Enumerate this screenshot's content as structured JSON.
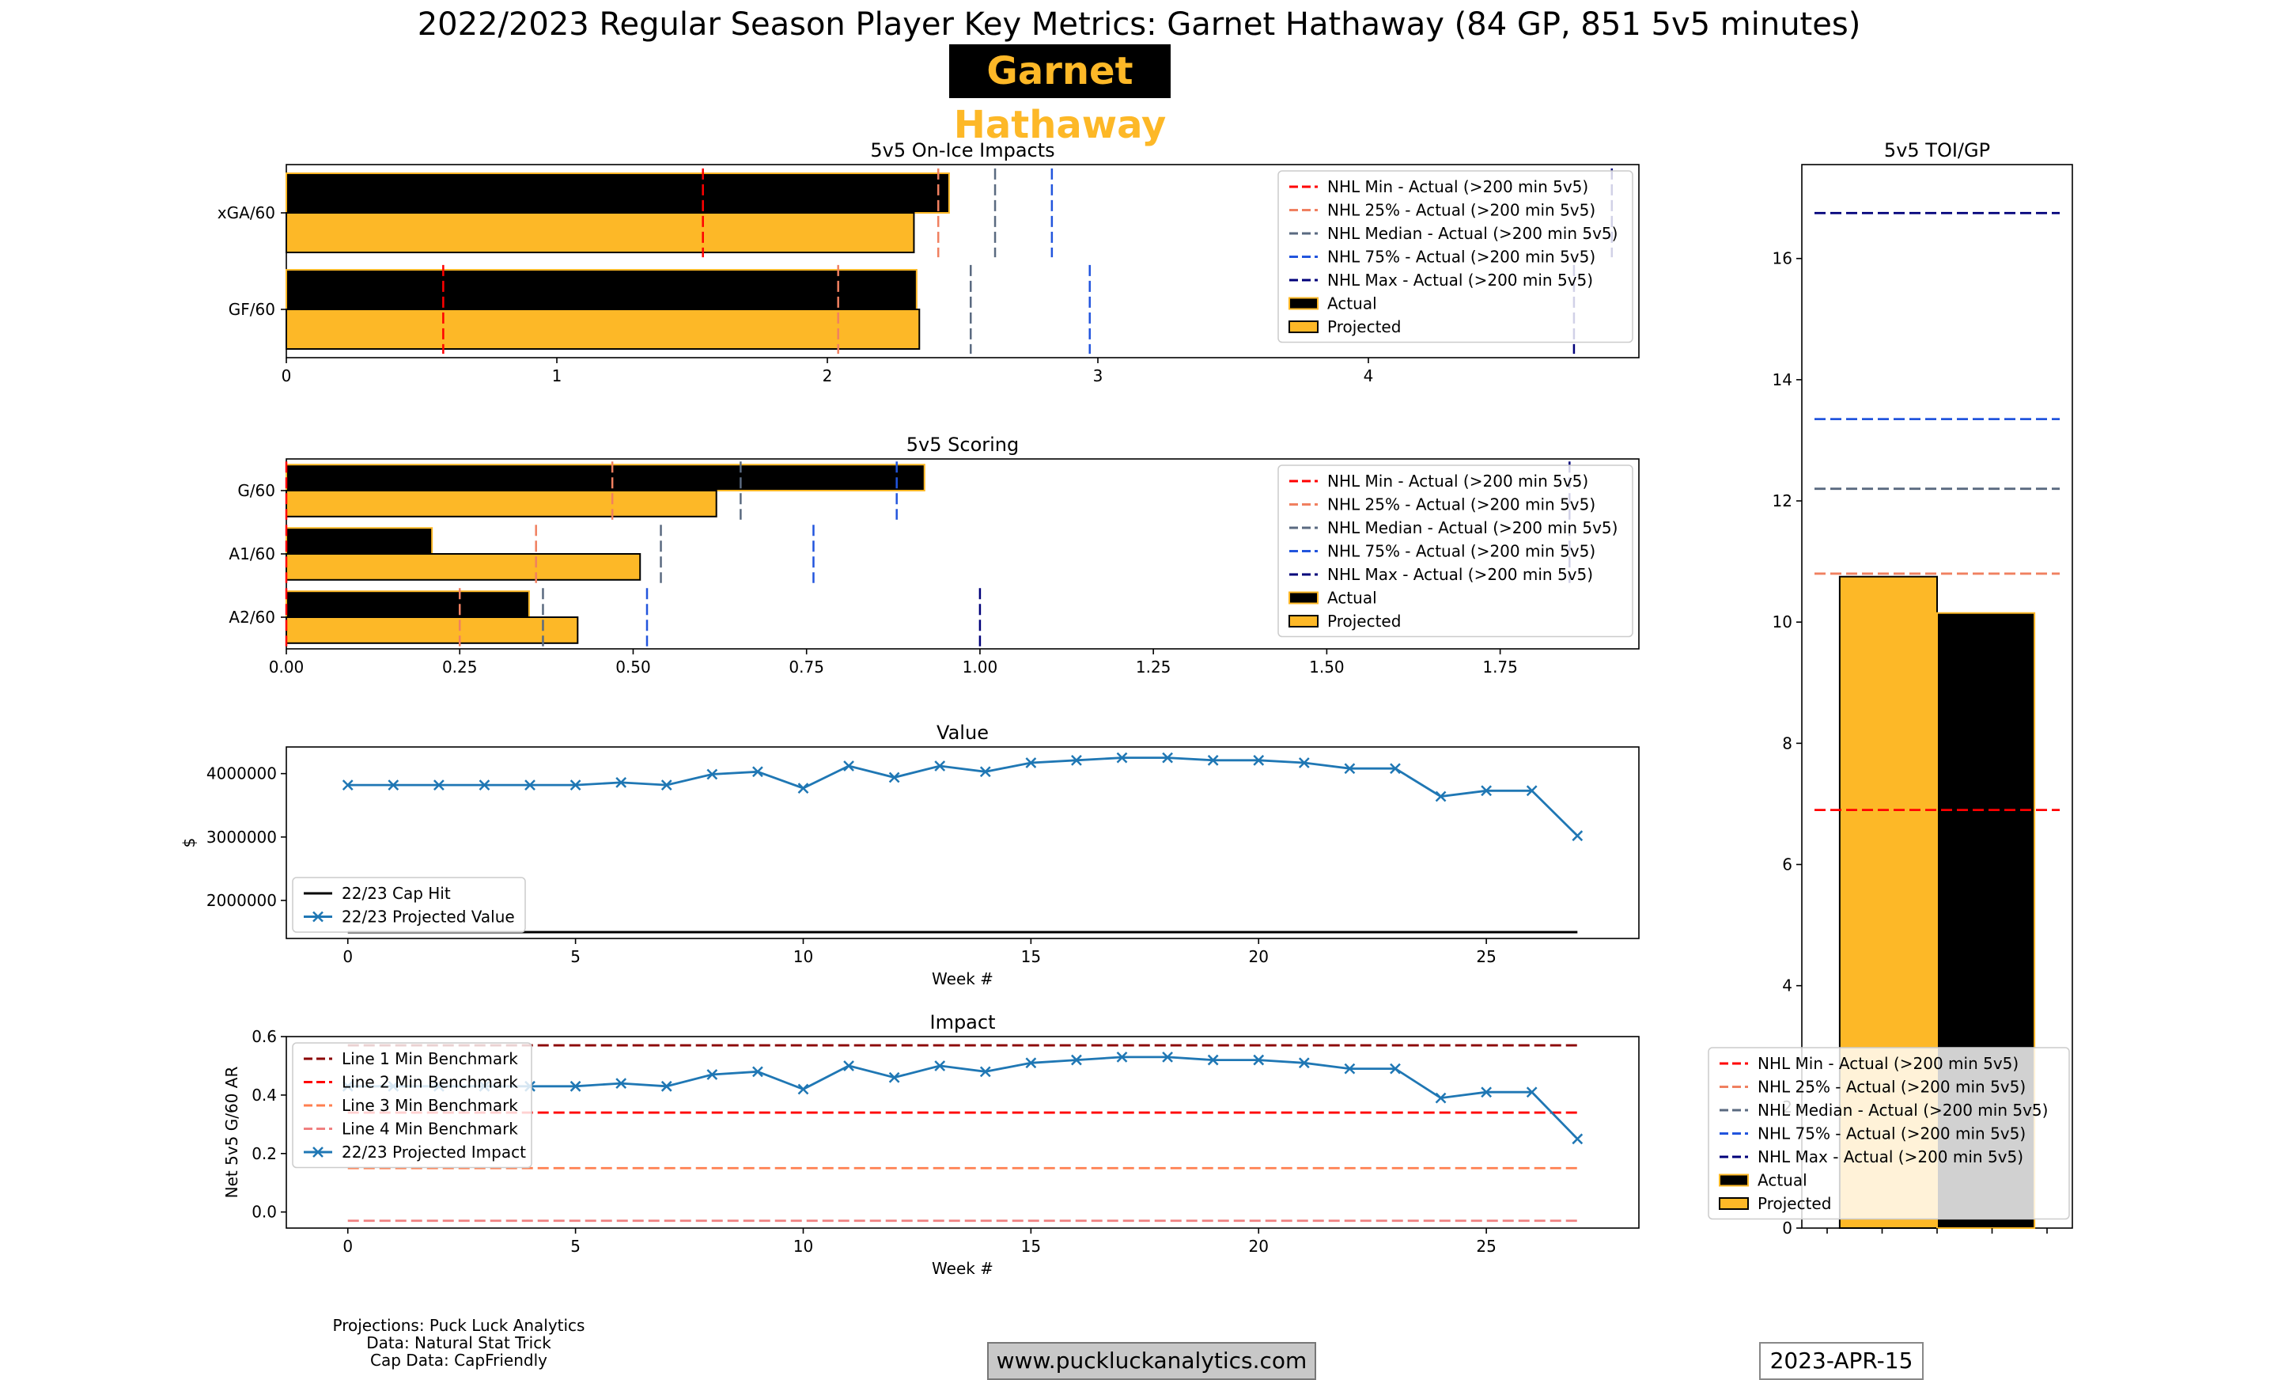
{
  "header": {
    "title": "2022/2023 Regular Season Player Key Metrics: Garnet Hathaway (84 GP, 851 5v5 minutes)",
    "player_name": "Garnet Hathaway"
  },
  "footer": {
    "credits": [
      "Projections: Puck Luck Analytics",
      "Data: Natural Stat Trick",
      "Cap Data: CapFriendly"
    ],
    "website": "www.puckluckanalytics.com",
    "date": "2023-APR-15"
  },
  "colors": {
    "actual": "#000000",
    "projected": "#FDB827",
    "nhl_min": "#FF0000",
    "nhl_25": "#F08060",
    "nhl_median": "#5A6A80",
    "nhl_75": "#2255DD",
    "nhl_max": "#00007A",
    "series": "#1F77B4",
    "line1": "#8B0000",
    "line2": "#FF0000",
    "line3": "#FF7F50",
    "line4": "#F08080"
  },
  "chart_data": [
    {
      "id": "onice",
      "type": "bar",
      "orientation": "horizontal",
      "title": "5v5 On-Ice Impacts",
      "categories": [
        "xGA/60",
        "GF/60"
      ],
      "series": [
        {
          "name": "Actual",
          "values": [
            2.45,
            2.33
          ]
        },
        {
          "name": "Projected",
          "values": [
            2.32,
            2.34
          ]
        }
      ],
      "benchmarks": [
        {
          "name": "NHL Min - Actual (>200 min 5v5)",
          "values": [
            1.54,
            0.58
          ]
        },
        {
          "name": "NHL 25% - Actual (>200 min 5v5)",
          "values": [
            2.41,
            2.04
          ]
        },
        {
          "name": "NHL Median - Actual (>200 min 5v5)",
          "values": [
            2.62,
            2.53
          ]
        },
        {
          "name": "NHL 75% - Actual (>200 min 5v5)",
          "values": [
            2.83,
            2.97
          ]
        },
        {
          "name": "NHL Max - Actual (>200 min 5v5)",
          "values": [
            4.9,
            4.76
          ]
        }
      ],
      "xlim": [
        0,
        5.0
      ],
      "xticks": [
        0,
        1,
        2,
        3,
        4
      ],
      "xtick_labels": [
        "0",
        "1",
        "2",
        "3",
        "4"
      ],
      "legend": "top-right"
    },
    {
      "id": "scoring",
      "type": "bar",
      "orientation": "horizontal",
      "title": "5v5 Scoring",
      "categories": [
        "G/60",
        "A1/60",
        "A2/60"
      ],
      "series": [
        {
          "name": "Actual",
          "values": [
            0.92,
            0.21,
            0.35
          ]
        },
        {
          "name": "Projected",
          "values": [
            0.62,
            0.51,
            0.42
          ]
        }
      ],
      "benchmarks": [
        {
          "name": "NHL Min - Actual (>200 min 5v5)",
          "values": [
            0.0,
            0.0,
            0.0
          ]
        },
        {
          "name": "NHL 25% - Actual (>200 min 5v5)",
          "values": [
            0.47,
            0.36,
            0.25
          ]
        },
        {
          "name": "NHL Median - Actual (>200 min 5v5)",
          "values": [
            0.655,
            0.54,
            0.37
          ]
        },
        {
          "name": "NHL 75% - Actual (>200 min 5v5)",
          "values": [
            0.88,
            0.76,
            0.52
          ]
        },
        {
          "name": "NHL Max - Actual (>200 min 5v5)",
          "values": [
            1.85,
            1.85,
            1.0
          ]
        }
      ],
      "xlim": [
        0,
        1.95
      ],
      "xticks": [
        0,
        0.25,
        0.5,
        0.75,
        1.0,
        1.25,
        1.5,
        1.75
      ],
      "xtick_labels": [
        "0.00",
        "0.25",
        "0.50",
        "0.75",
        "1.00",
        "1.25",
        "1.50",
        "1.75"
      ],
      "legend": "top-right"
    },
    {
      "id": "value",
      "type": "line",
      "title": "Value",
      "xlabel": "Week #",
      "ylabel": "$",
      "x": [
        0,
        1,
        2,
        3,
        4,
        5,
        6,
        7,
        8,
        9,
        10,
        11,
        12,
        13,
        14,
        15,
        16,
        17,
        18,
        19,
        20,
        21,
        22,
        23,
        24,
        25,
        26,
        27
      ],
      "series": [
        {
          "name": "22/23 Cap Hit",
          "values": [
            1500000,
            1500000,
            1500000,
            1500000,
            1500000,
            1500000,
            1500000,
            1500000,
            1500000,
            1500000,
            1500000,
            1500000,
            1500000,
            1500000,
            1500000,
            1500000,
            1500000,
            1500000,
            1500000,
            1500000,
            1500000,
            1500000,
            1500000,
            1500000,
            1500000,
            1500000,
            1500000,
            1500000
          ]
        },
        {
          "name": "22/23 Projected Value",
          "values": [
            3820000,
            3820000,
            3820000,
            3820000,
            3820000,
            3820000,
            3860000,
            3820000,
            3990000,
            4030000,
            3770000,
            4120000,
            3940000,
            4120000,
            4030000,
            4170000,
            4210000,
            4250000,
            4250000,
            4210000,
            4210000,
            4170000,
            4080000,
            4080000,
            3640000,
            3730000,
            3730000,
            3020000
          ]
        }
      ],
      "xlim": [
        -1.35,
        28.35
      ],
      "ylim": [
        1400000,
        4420000
      ],
      "xticks": [
        0,
        5,
        10,
        15,
        20,
        25
      ],
      "yticks": [
        2000000,
        3000000,
        4000000
      ],
      "ytick_labels": [
        "2000000",
        "3000000",
        "4000000"
      ],
      "legend": "bottom-left"
    },
    {
      "id": "impact",
      "type": "line",
      "title": "Impact",
      "xlabel": "Week #",
      "ylabel": "Net 5v5 G/60 AR",
      "x": [
        0,
        1,
        2,
        3,
        4,
        5,
        6,
        7,
        8,
        9,
        10,
        11,
        12,
        13,
        14,
        15,
        16,
        17,
        18,
        19,
        20,
        21,
        22,
        23,
        24,
        25,
        26,
        27
      ],
      "benchmarks": [
        {
          "name": "Line 1 Min Benchmark",
          "value": 0.57
        },
        {
          "name": "Line 2 Min Benchmark",
          "value": 0.34
        },
        {
          "name": "Line 3 Min Benchmark",
          "value": 0.15
        },
        {
          "name": "Line 4 Min Benchmark",
          "value": -0.03
        }
      ],
      "series": [
        {
          "name": "22/23 Projected Impact",
          "values": [
            0.43,
            0.43,
            0.43,
            0.43,
            0.43,
            0.43,
            0.44,
            0.43,
            0.47,
            0.48,
            0.42,
            0.5,
            0.46,
            0.5,
            0.48,
            0.51,
            0.52,
            0.53,
            0.53,
            0.52,
            0.52,
            0.51,
            0.49,
            0.49,
            0.39,
            0.41,
            0.41,
            0.25
          ]
        }
      ],
      "xlim": [
        -1.35,
        28.35
      ],
      "ylim": [
        -0.055,
        0.6
      ],
      "xticks": [
        0,
        5,
        10,
        15,
        20,
        25
      ],
      "yticks": [
        0.0,
        0.2,
        0.4,
        0.6
      ],
      "ytick_labels": [
        "0.0",
        "0.2",
        "0.4",
        "0.6"
      ],
      "legend": "top-left"
    },
    {
      "id": "toi",
      "type": "bar",
      "title": "5v5 TOI/GP",
      "series": [
        {
          "name": "Projected",
          "value": 10.75
        },
        {
          "name": "Actual",
          "value": 10.15
        }
      ],
      "benchmarks": [
        {
          "name": "NHL Min - Actual (>200 min 5v5)",
          "value": 6.9
        },
        {
          "name": "NHL 25% - Actual (>200 min 5v5)",
          "value": 10.8
        },
        {
          "name": "NHL Median - Actual (>200 min 5v5)",
          "value": 12.2
        },
        {
          "name": "NHL 75% - Actual (>200 min 5v5)",
          "value": 13.35
        },
        {
          "name": "NHL Max - Actual (>200 min 5v5)",
          "value": 16.75
        }
      ],
      "ylim": [
        0,
        17.55
      ],
      "yticks": [
        0,
        2,
        4,
        6,
        8,
        10,
        12,
        14,
        16
      ],
      "ytick_labels": [
        "0",
        "2",
        "4",
        "6",
        "8",
        "10",
        "12",
        "14",
        "16"
      ],
      "legend": "bottom-right"
    }
  ]
}
